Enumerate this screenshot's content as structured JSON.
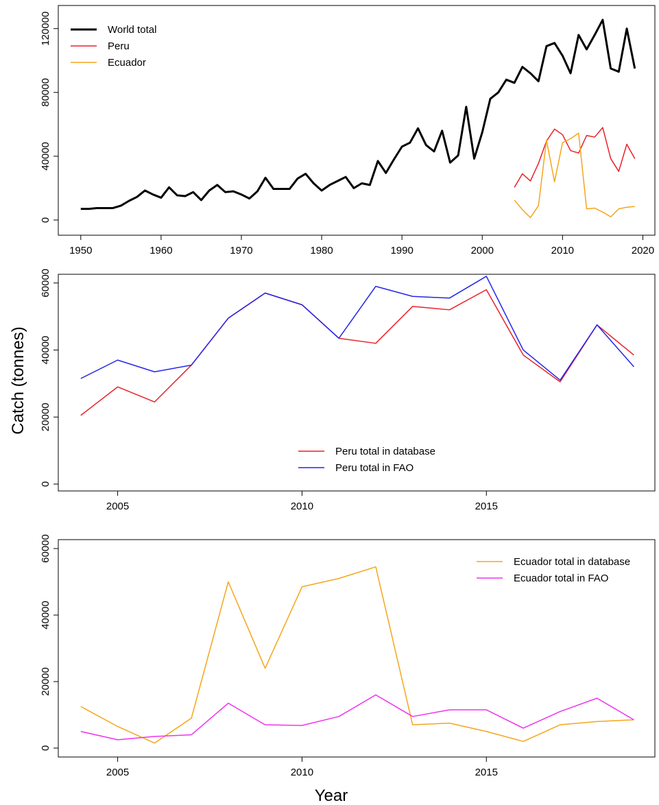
{
  "chart_data": [
    {
      "type": "line",
      "legend": "topleft",
      "x": [
        1950,
        1951,
        1952,
        1953,
        1954,
        1955,
        1956,
        1957,
        1958,
        1959,
        1960,
        1961,
        1962,
        1963,
        1964,
        1965,
        1966,
        1967,
        1968,
        1969,
        1970,
        1971,
        1972,
        1973,
        1974,
        1975,
        1976,
        1977,
        1978,
        1979,
        1980,
        1981,
        1982,
        1983,
        1984,
        1985,
        1986,
        1987,
        1988,
        1989,
        1990,
        1991,
        1992,
        1993,
        1994,
        1995,
        1996,
        1997,
        1998,
        1999,
        2000,
        2001,
        2002,
        2003,
        2004,
        2005,
        2006,
        2007,
        2008,
        2009,
        2010,
        2011,
        2012,
        2013,
        2014,
        2015,
        2016,
        2017,
        2018,
        2019
      ],
      "xlim": [
        1947.2,
        2021.5
      ],
      "xticks": [
        1950,
        1960,
        1970,
        1980,
        1990,
        2000,
        2010,
        2020
      ],
      "ylim": [
        -9500,
        134500
      ],
      "yticks": [
        0,
        40000,
        80000,
        120000
      ],
      "series": [
        {
          "name": "World total",
          "color": "#000000",
          "width": 3,
          "values": [
            7000,
            7000,
            7500,
            7500,
            7500,
            9000,
            12000,
            14500,
            18500,
            16000,
            14000,
            20500,
            15500,
            15000,
            17500,
            12500,
            18500,
            22000,
            17500,
            18000,
            16000,
            13500,
            18000,
            26500,
            19500,
            19500,
            19500,
            26000,
            29000,
            23000,
            18500,
            22000,
            24500,
            27000,
            20000,
            23000,
            22000,
            37000,
            29500,
            38000,
            46000,
            48500,
            57500,
            47000,
            43000,
            56000,
            36000,
            40500,
            71000,
            38500,
            55000,
            76000,
            80000,
            88000,
            86000,
            96000,
            92000,
            87000,
            109000,
            111000,
            103000,
            92000,
            116000,
            107000,
            116000,
            125500,
            95000,
            93000,
            120000,
            95000
          ]
        },
        {
          "name": "Peru",
          "color": "#e8212a",
          "width": 1.5,
          "x": [
            2004,
            2005,
            2006,
            2007,
            2008,
            2009,
            2010,
            2011,
            2012,
            2013,
            2014,
            2015,
            2016,
            2017,
            2018,
            2019
          ],
          "values": [
            20500,
            29000,
            24500,
            35500,
            49500,
            57000,
            53500,
            43500,
            42000,
            53000,
            52000,
            58000,
            38500,
            30500,
            47500,
            38500
          ]
        },
        {
          "name": "Ecuador",
          "color": "#f5a51c",
          "width": 1.5,
          "x": [
            2004,
            2005,
            2006,
            2007,
            2008,
            2009,
            2010,
            2011,
            2012,
            2013,
            2014,
            2015,
            2016,
            2017,
            2018,
            2019
          ],
          "values": [
            12500,
            6500,
            1500,
            9000,
            50000,
            24000,
            48500,
            51000,
            54500,
            7000,
            7500,
            5000,
            2000,
            7000,
            8000,
            8500
          ]
        }
      ]
    },
    {
      "type": "line",
      "legend": "bottom",
      "ylabel": "Catch (tonnes)",
      "x": [
        2004,
        2005,
        2006,
        2007,
        2008,
        2009,
        2010,
        2011,
        2012,
        2013,
        2014,
        2015,
        2016,
        2017,
        2018,
        2019
      ],
      "xlim": [
        2003.39,
        2019.57
      ],
      "xticks": [
        2005,
        2010,
        2015
      ],
      "ylim": [
        -2050,
        62600
      ],
      "yticks": [
        0,
        20000,
        40000,
        60000
      ],
      "series": [
        {
          "name": "Peru total in database",
          "color": "#e8212a",
          "width": 1.5,
          "values": [
            20500,
            29000,
            24500,
            35500,
            49500,
            57000,
            53500,
            43500,
            42000,
            53000,
            52000,
            58000,
            38500,
            30500,
            47500,
            38500
          ]
        },
        {
          "name": "Peru total in FAO",
          "color": "#2424e8",
          "width": 1.5,
          "values": [
            31500,
            37000,
            33500,
            35500,
            49500,
            57000,
            53500,
            43500,
            59000,
            56000,
            55500,
            62000,
            40000,
            31000,
            47500,
            35000
          ]
        }
      ]
    },
    {
      "type": "line",
      "legend": "topright",
      "xlabel": "Year",
      "x": [
        2004,
        2005,
        2006,
        2007,
        2008,
        2009,
        2010,
        2011,
        2012,
        2013,
        2014,
        2015,
        2016,
        2017,
        2018,
        2019
      ],
      "xlim": [
        2003.39,
        2019.57
      ],
      "xticks": [
        2005,
        2010,
        2015
      ],
      "ylim": [
        -2680,
        62680
      ],
      "yticks": [
        0,
        20000,
        40000,
        60000
      ],
      "series": [
        {
          "name": "Ecuador total in database",
          "color": "#f5a51c",
          "width": 1.5,
          "values": [
            12500,
            6500,
            1500,
            9000,
            50000,
            24000,
            48500,
            51000,
            54500,
            7000,
            7500,
            5000,
            2000,
            7000,
            8000,
            8500
          ]
        },
        {
          "name": "Ecuador total in FAO",
          "color": "#ee33ee",
          "width": 1.5,
          "values": [
            5000,
            2500,
            3500,
            4000,
            13500,
            7000,
            6800,
            9500,
            16000,
            9500,
            11500,
            11500,
            6000,
            11000,
            15000,
            8500
          ]
        }
      ]
    }
  ]
}
